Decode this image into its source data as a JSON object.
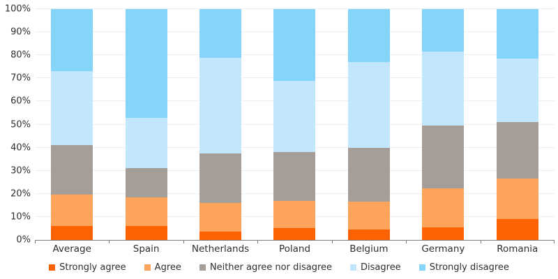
{
  "chart_data": {
    "type": "bar",
    "stacked": true,
    "percent": true,
    "title": "",
    "xlabel": "",
    "ylabel": "",
    "ylim": [
      0,
      100
    ],
    "grid": true,
    "legend_position": "bottom",
    "yticks": [
      "0%",
      "10%",
      "20%",
      "30%",
      "40%",
      "50%",
      "60%",
      "70%",
      "80%",
      "90%",
      "100%"
    ],
    "categories": [
      "Average",
      "Spain",
      "Netherlands",
      "Poland",
      "Belgium",
      "Germany",
      "Romania"
    ],
    "series": [
      {
        "name": "Strongly agree",
        "color": "#FE6100",
        "values": [
          6,
          6,
          3.5,
          5,
          4.5,
          5.5,
          9
        ]
      },
      {
        "name": "Agree",
        "color": "#FCA35C",
        "values": [
          13.5,
          12.5,
          12.5,
          12,
          12,
          17,
          17.5
        ]
      },
      {
        "name": "Neither agree nor disagree",
        "color": "#A59D97",
        "values": [
          21.5,
          12.5,
          21.5,
          21,
          23.5,
          27,
          24.5
        ]
      },
      {
        "name": "Disagree",
        "color": "#C2E6FB",
        "values": [
          32,
          22,
          41.5,
          31,
          37,
          32,
          27.5
        ]
      },
      {
        "name": "Strongly disagree",
        "color": "#85D4F9",
        "values": [
          27,
          47,
          21,
          31,
          23,
          18.5,
          21.5
        ]
      }
    ],
    "colors": {
      "axis_line": "#7a7a7a",
      "gridline": "#eeeeee",
      "text": "#2e2e2e"
    }
  }
}
